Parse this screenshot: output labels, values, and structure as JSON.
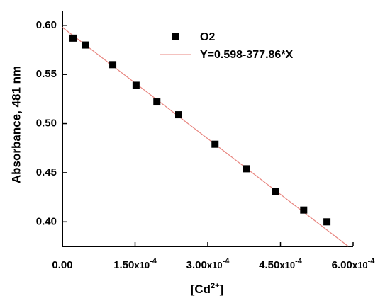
{
  "chart_data": {
    "type": "scatter",
    "xlabel": "[Cd2+]",
    "xlabel_parts": {
      "base": "[Cd",
      "superscript": "2+",
      "close": "]"
    },
    "ylabel": "Absorbance, 481 nm",
    "xlim": [
      0,
      0.0006
    ],
    "ylim": [
      0.375,
      0.615
    ],
    "x_ticks": [
      {
        "value": 0,
        "mantissa": "0.00",
        "exp_label": ""
      },
      {
        "value": 0.00015,
        "mantissa": "1.50",
        "exp_label": "x10",
        "exp": "-4"
      },
      {
        "value": 0.0003,
        "mantissa": "3.00",
        "exp_label": "x10",
        "exp": "-4"
      },
      {
        "value": 0.00045,
        "mantissa": "4.50",
        "exp_label": "x10",
        "exp": "-4"
      },
      {
        "value": 0.0006,
        "mantissa": "6.00",
        "exp_label": "x10",
        "exp": "-4"
      }
    ],
    "y_ticks": [
      {
        "value": 0.4,
        "label": "0.40"
      },
      {
        "value": 0.45,
        "label": "0.45"
      },
      {
        "value": 0.5,
        "label": "0.50"
      },
      {
        "value": 0.55,
        "label": "0.55"
      },
      {
        "value": 0.6,
        "label": "0.60"
      }
    ],
    "series": [
      {
        "name": "O2",
        "marker": "square",
        "color": "#000000",
        "points": [
          {
            "x": 2.2e-05,
            "y": 0.587
          },
          {
            "x": 4.8e-05,
            "y": 0.58
          },
          {
            "x": 0.000104,
            "y": 0.56
          },
          {
            "x": 0.000152,
            "y": 0.539
          },
          {
            "x": 0.000195,
            "y": 0.522
          },
          {
            "x": 0.00024,
            "y": 0.509
          },
          {
            "x": 0.000315,
            "y": 0.479
          },
          {
            "x": 0.00038,
            "y": 0.454
          },
          {
            "x": 0.00044,
            "y": 0.431
          },
          {
            "x": 0.000498,
            "y": 0.412
          },
          {
            "x": 0.000546,
            "y": 0.4
          }
        ]
      }
    ],
    "fit": {
      "name": "Y=0.598-377.86*X",
      "intercept": 0.598,
      "slope": -377.86,
      "color": "#e8857f"
    },
    "legend_position": "top-right",
    "grid": false
  }
}
